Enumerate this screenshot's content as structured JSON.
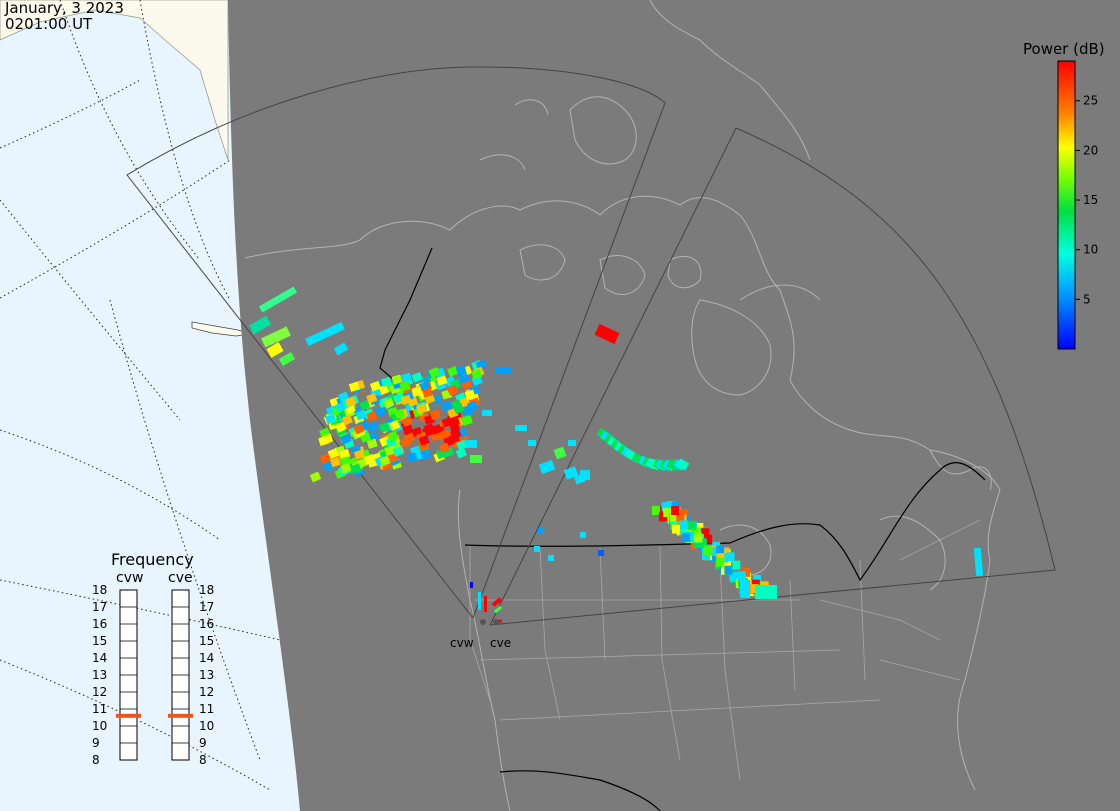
{
  "header": {
    "date": "January, 3 2023",
    "time": "0201:00 UT"
  },
  "legend": {
    "title": "Power (dB)",
    "ticks": [
      "25",
      "20",
      "15",
      "10",
      "5"
    ],
    "tick_values": [
      25,
      20,
      15,
      10,
      5
    ],
    "range": [
      0,
      29
    ]
  },
  "radars": {
    "cvw": "cvw",
    "cve": "cve"
  },
  "frequency": {
    "title": "Frequency",
    "radar_left": "cvw",
    "radar_right": "cve",
    "scale": [
      "18",
      "17",
      "16",
      "15",
      "14",
      "13",
      "12",
      "11",
      "10",
      "9",
      "8"
    ],
    "cvw_mhz": 10.6,
    "cve_mhz": 10.6,
    "marker_color": "#e8561d"
  },
  "colors": {
    "night": "#7b7b7b",
    "ocean_day": "#e8f5ff",
    "land_day": "#fcfaec",
    "coast": "#b3b3b3",
    "fov": "#444444"
  }
}
